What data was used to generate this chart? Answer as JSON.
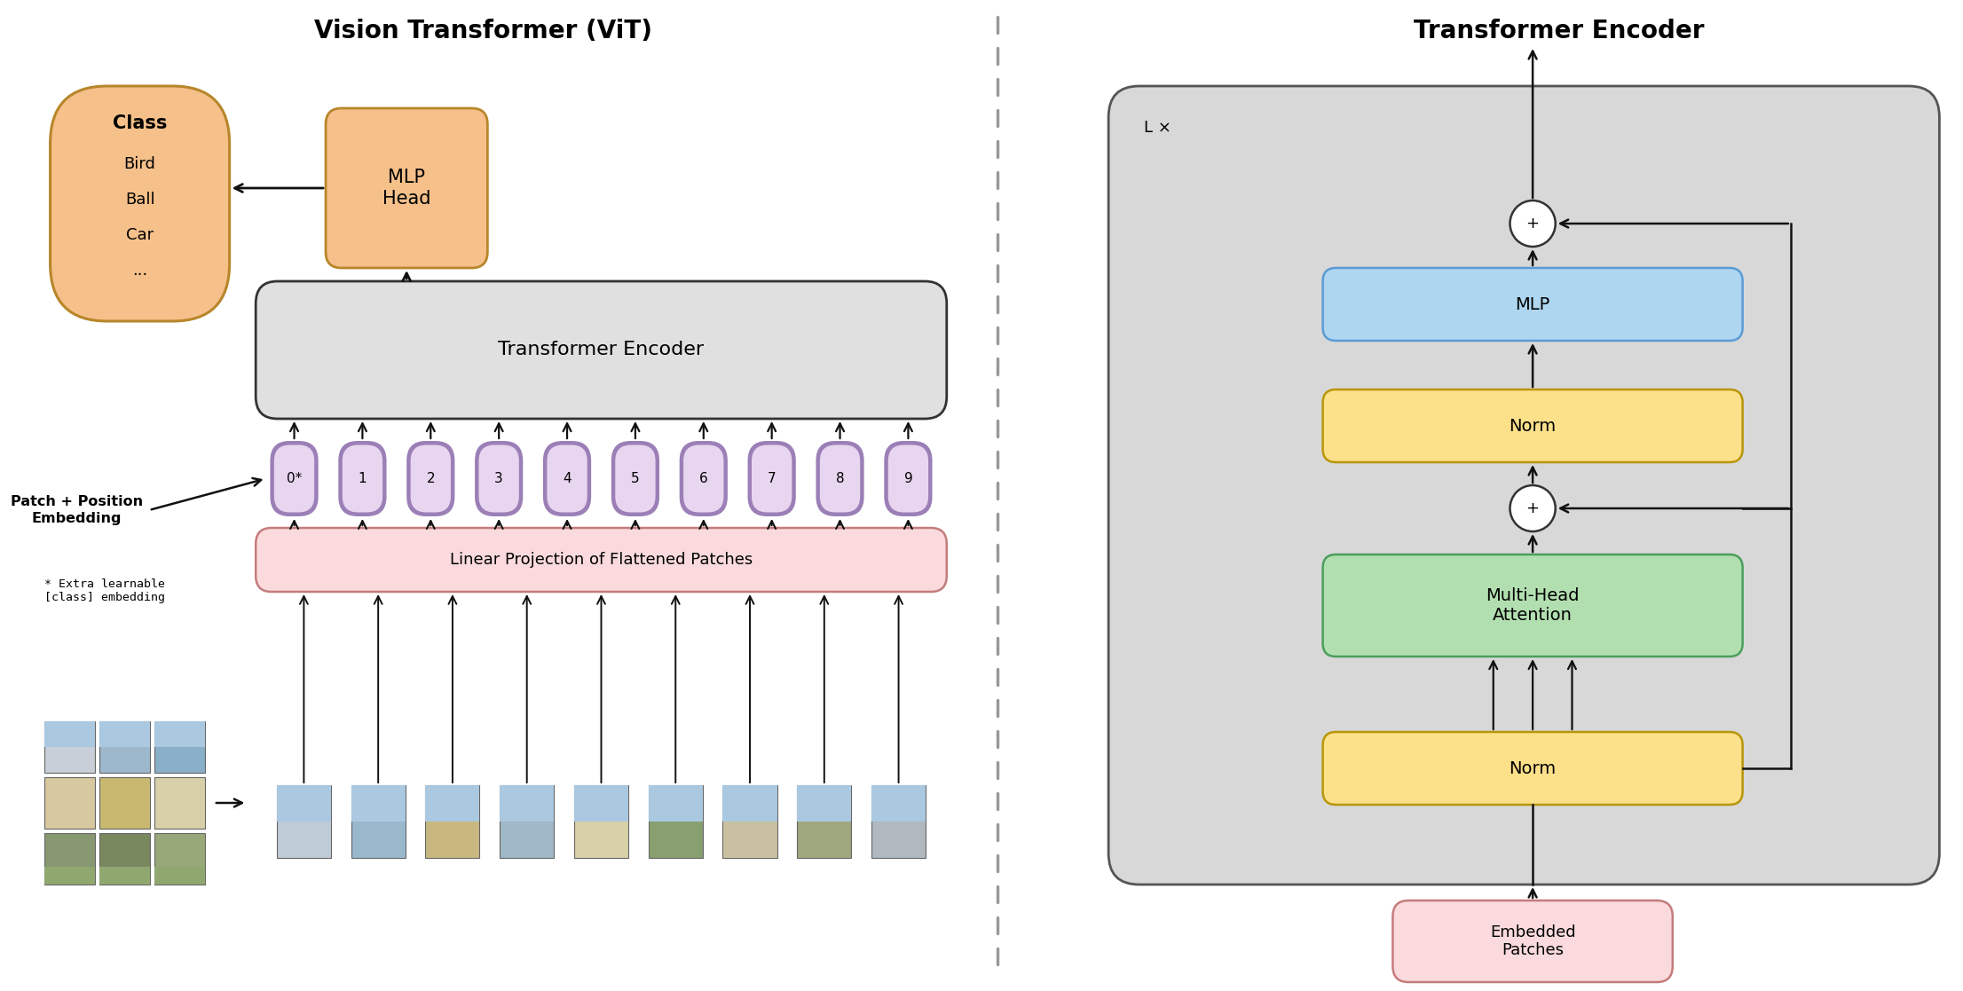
{
  "title_left": "Vision Transformer (ViT)",
  "title_right": "Transformer Encoder",
  "title_fontsize": 20,
  "bg_color": "#ffffff",
  "patch_tokens": [
    "0*",
    "1",
    "2",
    "3",
    "4",
    "5",
    "6",
    "7",
    "8",
    "9"
  ],
  "token_fill_color": "#e8d5f0",
  "token_border_color": "#9b7fb6",
  "token_inner_color": "#f5e8ff",
  "class_box_color": "#f5c08a",
  "class_box_border": "#b8862a",
  "mlp_head_color": "#f5c08a",
  "mlp_head_border": "#b8862a",
  "transformer_enc_color": "#e0e0e0",
  "transformer_enc_border": "#333333",
  "linear_proj_color": "#fadadd",
  "linear_proj_border": "#c47c7c",
  "embedded_patches_color": "#fadadd",
  "embedded_patches_border": "#c47c7c",
  "enc_bg_color": "#d8d8d8",
  "enc_border": "#555555",
  "mlp_block_color": "#aed6f1",
  "mlp_block_border": "#5b9bd5",
  "norm_color": "#fce08a",
  "norm_border": "#b8960a",
  "mha_color": "#b2dfb0",
  "mha_border": "#4a9e5c",
  "plus_circle_color": "#ffffff",
  "plus_circle_border": "#333333",
  "arrow_color": "#111111",
  "dashed_line_color": "#999999",
  "label_patch_embed": "Patch + Position\nEmbedding",
  "label_extra_learnable": "* Extra learnable\n[class] embedding",
  "label_linear_proj": "Linear Projection of Flattened Patches",
  "label_transformer_enc": "Transformer Encoder",
  "label_mlp_head": "MLP\nHead",
  "label_embedded_patches": "Embedded\nPatches",
  "label_mlp": "MLP",
  "label_norm1": "Norm",
  "label_norm2": "Norm",
  "label_mha": "Multi-Head\nAttention",
  "label_lx": "L ×"
}
